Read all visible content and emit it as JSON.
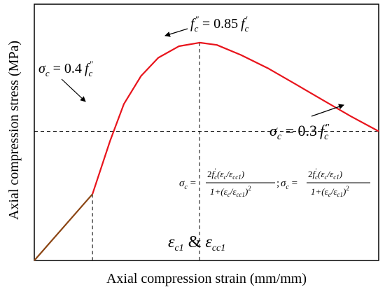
{
  "chart_data": {
    "type": "line",
    "xlabel": "Axial compression strain (mm/mm)",
    "ylabel": "Axial compression stress (MPa)",
    "xlim": [
      0,
      1
    ],
    "ylim": [
      0,
      1
    ],
    "grid": false,
    "ticks_shown": false,
    "series": [
      {
        "segment": "linear-ascending",
        "color": "#8b4513",
        "x": [
          0.0,
          0.169
        ],
        "y": [
          0.0,
          0.259
        ]
      },
      {
        "segment": "curve",
        "color": "#e8141c",
        "x": [
          0.169,
          0.22,
          0.26,
          0.31,
          0.36,
          0.42,
          0.48,
          0.53,
          0.6,
          0.68,
          0.76,
          0.84,
          0.92,
          1.0
        ],
        "y": [
          0.259,
          0.466,
          0.61,
          0.72,
          0.791,
          0.836,
          0.85,
          0.841,
          0.802,
          0.749,
          0.687,
          0.624,
          0.562,
          0.504
        ]
      }
    ],
    "reference_lines": {
      "horizontal_y": 0.504,
      "vertical_x": [
        0.169,
        0.48
      ]
    },
    "annotations": {
      "sigma_04": {
        "sym": "σ",
        "sub": "c",
        "eq": " = 0.4",
        "f": "f",
        "fsub": "c",
        "fsup": "\""
      },
      "f_peak": {
        "f": "f",
        "sub": "c",
        "sup": "\"",
        "eq": " = 0.85",
        "f2": "f",
        "f2sub": "c",
        "f2sup": "'"
      },
      "sigma_03": {
        "sym": "σ",
        "sub": "c",
        "eq": " = 0.3",
        "f": "f",
        "fsub": "c",
        "fsup": "\""
      },
      "eps_label": {
        "e1": "ε",
        "s1": "c1",
        "amp": " & ",
        "e2": "ε",
        "s2": "cc1"
      },
      "formula": {
        "left": "σ",
        "lsub": "c",
        "eq": " = ",
        "num1_pre": "2",
        "num1_f": "f",
        "num1_fsub": "c",
        "num1_fsup": "'",
        "num1_rest": "(ε",
        "num1_rsub": "c",
        "num1_slash": "/ε",
        "num1_ssub": "cc1",
        "num1_close": ")",
        "den1": "1+(ε",
        "den1_sub": "c",
        "den1_slash": "/ε",
        "den1_ssub": "cc1",
        "den1_close": ")",
        "den1_sup": "2",
        "sep": ";",
        "num2_pre": "2",
        "num2_f": "f",
        "num2_fsub": "c",
        "num2_fsup": "'",
        "num2_rest": "(ε",
        "num2_rsub": "c",
        "num2_slash": "/ε",
        "num2_ssub": "c1",
        "num2_close": ")",
        "den2": "1+(ε",
        "den2_sub": "c",
        "den2_slash": "/ε",
        "den2_ssub": "c1",
        "den2_close": ")",
        "den2_sup": "2"
      }
    }
  }
}
